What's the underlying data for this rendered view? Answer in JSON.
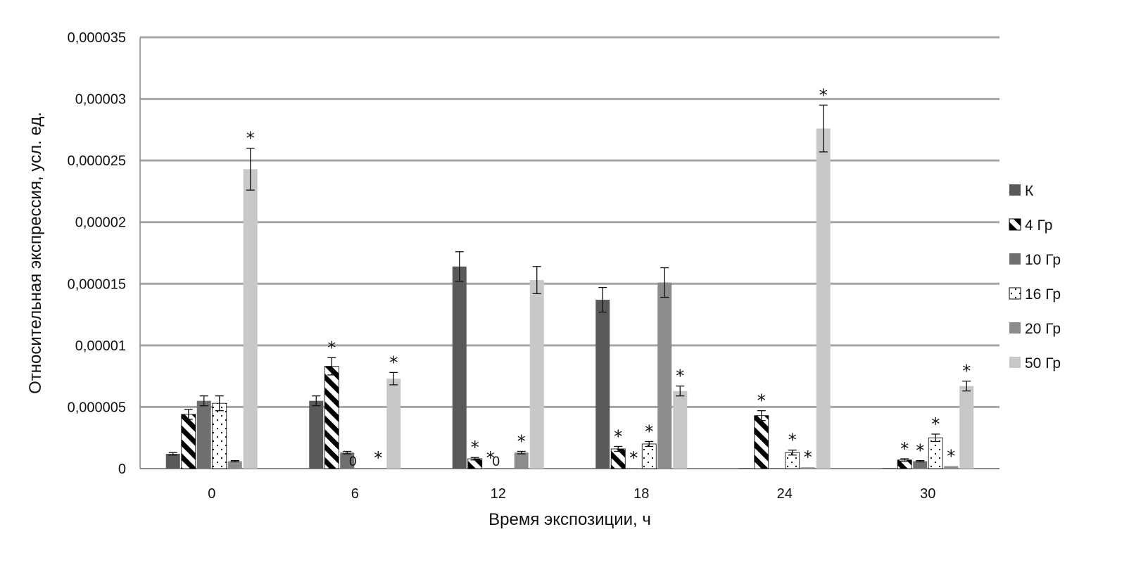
{
  "chart_data": {
    "type": "bar",
    "title": "",
    "xlabel": "Время экспозиции, ч",
    "ylabel": "Относительная экспрессия, усл. ед.",
    "ylim": [
      0,
      3.5e-05
    ],
    "y_ticks": [
      "0",
      "0,000005",
      "0,00001",
      "0,000015",
      "0,00002",
      "0,000025",
      "0,00003",
      "0,000035"
    ],
    "categories": [
      "0",
      "6",
      "12",
      "18",
      "24",
      "30"
    ],
    "grid": true,
    "legend_position": "right",
    "series": [
      {
        "name": "К",
        "color": "#595959",
        "pattern": "solid",
        "values": [
          1.2e-06,
          5.5e-06,
          1.64e-05,
          1.37e-05,
          5e-08,
          5e-08
        ],
        "errors": [
          1e-07,
          4e-07,
          1.2e-06,
          1e-06,
          0,
          0
        ]
      },
      {
        "name": "4 Гр",
        "color": "#000000",
        "pattern": "diagonal-stripes",
        "values": [
          4.4e-06,
          8.3e-06,
          8e-07,
          1.6e-06,
          4.3e-06,
          7e-07
        ],
        "errors": [
          4e-07,
          7e-07,
          1e-07,
          2e-07,
          4e-07,
          1e-07
        ]
      },
      {
        "name": "10 Гр",
        "color": "#6f6f6f",
        "pattern": "solid",
        "values": [
          5.5e-06,
          1.3e-06,
          5e-08,
          5e-08,
          5e-08,
          6e-07
        ],
        "errors": [
          4e-07,
          1e-07,
          0,
          0,
          0,
          5e-08
        ]
      },
      {
        "name": "16 Гр",
        "color": "#ffffff",
        "pattern": "dots",
        "values": [
          5.3e-06,
          0,
          0,
          2e-06,
          1.3e-06,
          2.5e-06
        ],
        "errors": [
          6e-07,
          0,
          0,
          2e-07,
          2e-07,
          3e-07
        ]
      },
      {
        "name": "20 Гр",
        "color": "#8c8c8c",
        "pattern": "solid",
        "values": [
          6e-07,
          5e-08,
          1.3e-06,
          1.51e-05,
          1e-07,
          2e-07
        ],
        "errors": [
          5e-08,
          0,
          1e-07,
          1.2e-06,
          0,
          0
        ]
      },
      {
        "name": "50 Гр",
        "color": "#c8c8c8",
        "pattern": "solid",
        "values": [
          2.43e-05,
          7.3e-06,
          1.53e-05,
          6.3e-06,
          2.76e-05,
          6.7e-06
        ],
        "errors": [
          1.7e-06,
          5e-07,
          1.1e-06,
          4e-07,
          1.9e-06,
          4e-07
        ]
      }
    ],
    "annotations": [
      {
        "category": "0",
        "series": "50 Гр",
        "text": "*"
      },
      {
        "category": "6",
        "series": "4 Гр",
        "text": "*"
      },
      {
        "category": "6",
        "series": "16 Гр",
        "text": "0"
      },
      {
        "category": "6",
        "series": "20 Гр",
        "text": "*"
      },
      {
        "category": "6",
        "series": "50 Гр",
        "text": "*"
      },
      {
        "category": "12",
        "series": "4 Гр",
        "text": "*"
      },
      {
        "category": "12",
        "series": "10 Гр",
        "text": "*"
      },
      {
        "category": "12",
        "series": "16 Гр",
        "text": "0"
      },
      {
        "category": "12",
        "series": "20 Гр",
        "text": "*"
      },
      {
        "category": "18",
        "series": "4 Гр",
        "text": "*"
      },
      {
        "category": "18",
        "series": "10 Гр",
        "text": "*"
      },
      {
        "category": "18",
        "series": "16 Гр",
        "text": "*"
      },
      {
        "category": "18",
        "series": "50 Гр",
        "text": "*"
      },
      {
        "category": "24",
        "series": "4 Гр",
        "text": "*"
      },
      {
        "category": "24",
        "series": "16 Гр",
        "text": "*"
      },
      {
        "category": "24",
        "series": "20 Гр",
        "text": "*"
      },
      {
        "category": "24",
        "series": "50 Гр",
        "text": "*"
      },
      {
        "category": "30",
        "series": "4 Гр",
        "text": "*"
      },
      {
        "category": "30",
        "series": "10 Гр",
        "text": "*"
      },
      {
        "category": "30",
        "series": "16 Гр",
        "text": "*"
      },
      {
        "category": "30",
        "series": "20 Гр",
        "text": "*"
      },
      {
        "category": "30",
        "series": "50 Гр",
        "text": "*"
      }
    ]
  }
}
